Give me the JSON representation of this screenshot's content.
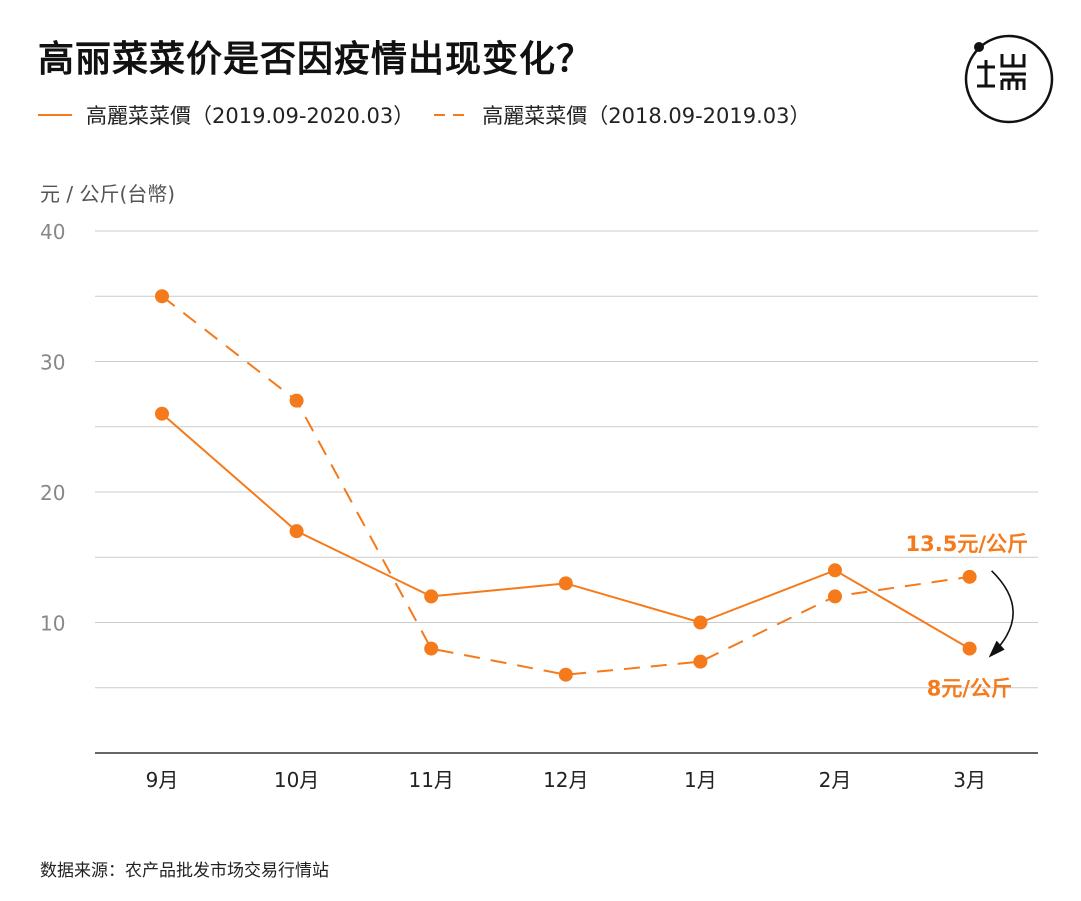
{
  "title": "高丽菜菜价是否因疫情出现变化？",
  "logo_text": "端",
  "legend": {
    "solid_label": "高麗菜菜價（2019.09-2020.03）",
    "dashed_label": "高麗菜菜價（2018.09-2019.03）"
  },
  "unit_label": "元 / 公斤(台幣)",
  "source": "数据来源：农产品批发市场交易行情站",
  "colors": {
    "accent": "#f47a1b",
    "grid": "#cccccc",
    "axis": "#333333"
  },
  "chart_data": {
    "type": "line",
    "categories": [
      "9月",
      "10月",
      "11月",
      "12月",
      "1月",
      "2月",
      "3月"
    ],
    "series": [
      {
        "name": "高麗菜菜價（2019.09-2020.03）",
        "style": "solid",
        "values": [
          26,
          17,
          12,
          13,
          10,
          14,
          8
        ]
      },
      {
        "name": "高麗菜菜價（2018.09-2019.03）",
        "style": "dashed",
        "values": [
          35,
          27,
          8,
          6,
          7,
          12,
          13.5
        ]
      }
    ],
    "yticks": [
      10,
      20,
      30,
      40
    ],
    "ylim": [
      0,
      40
    ],
    "grid": true,
    "legend_position": "top-left",
    "annotations": [
      {
        "text": "13.5元/公斤",
        "category": "3月",
        "value": 13.5
      },
      {
        "text": "8元/公斤",
        "category": "3月",
        "value": 8
      }
    ]
  }
}
